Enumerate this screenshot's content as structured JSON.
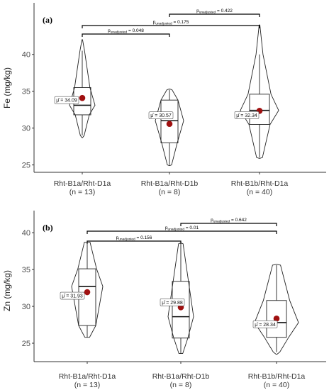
{
  "chart_data": [
    {
      "type": "violin",
      "panel_label": "(a)",
      "ylabel": "Fe (mg/kg)",
      "ylim": [
        24,
        47
      ],
      "yticks": [
        25,
        30,
        35,
        40
      ],
      "categories": [
        "Rht-B1a/Rht-D1a",
        "Rht-B1a/Rht-D1b",
        "Rht-B1b/Rht-D1a"
      ],
      "n_labels": [
        "(n = 13)",
        "(n = 8)",
        "(n = 40)"
      ],
      "groups": [
        {
          "name": "Rht-B1a/Rht-D1a",
          "n": 13,
          "mean": 34.09,
          "mean_label": "μ̂ = 34.09",
          "median": 33.1,
          "q1": 31.8,
          "q3": 35.5,
          "whisker_low": 29.0,
          "whisker_high": 40.5,
          "min": 28.7,
          "max": 42.0
        },
        {
          "name": "Rht-B1a/Rht-D1b",
          "n": 8,
          "mean": 30.57,
          "mean_label": "μ̂ = 30.57",
          "median": 31.0,
          "q1": 28.0,
          "q3": 33.8,
          "whisker_low": 25.0,
          "whisker_high": 35.2,
          "min": 24.9,
          "max": 35.3
        },
        {
          "name": "Rht-B1b/Rht-D1a",
          "n": 40,
          "mean": 32.34,
          "mean_label": "μ̂ = 32.34",
          "median": 32.4,
          "q1": 30.5,
          "q3": 34.6,
          "whisker_low": 26.0,
          "whisker_high": 40.0,
          "min": 25.9,
          "max": 44.0
        }
      ],
      "comparisons": [
        {
          "from": 0,
          "to": 1,
          "p": "0.048"
        },
        {
          "from": 0,
          "to": 2,
          "p": "0.175"
        },
        {
          "from": 1,
          "to": 2,
          "p": "0.422"
        }
      ]
    },
    {
      "type": "violin",
      "panel_label": "(b)",
      "ylabel": "Zn (mg/kg)",
      "ylim": [
        22.5,
        43
      ],
      "yticks": [
        25,
        30,
        35,
        40
      ],
      "categories": [
        "Rht-B1a/Rht-D1a",
        "Rht-B1a/Rht-D1b",
        "Rht-B1b/Rht-D1a"
      ],
      "n_labels": [
        "(n = 13)",
        "(n = 8)",
        "(n = 40)"
      ],
      "groups": [
        {
          "name": "Rht-B1a/Rht-D1a",
          "n": 13,
          "mean": 31.93,
          "mean_label": "μ̂ = 31.93",
          "median": 32.7,
          "q1": 27.4,
          "q3": 35.1,
          "whisker_low": 25.8,
          "whisker_high": 38.7,
          "min": 25.8,
          "max": 38.7
        },
        {
          "name": "Rht-B1a/Rht-D1b",
          "n": 8,
          "mean": 29.88,
          "mean_label": "μ̂ = 29.88",
          "median": 28.6,
          "q1": 25.7,
          "q3": 33.4,
          "whisker_low": 23.6,
          "whisker_high": 38.5,
          "min": 23.6,
          "max": 38.6
        },
        {
          "name": "Rht-B1b/Rht-D1a",
          "n": 40,
          "mean": 28.34,
          "mean_label": "μ̂ = 28.34",
          "median": 27.8,
          "q1": 25.8,
          "q3": 30.8,
          "whisker_low": 23.8,
          "whisker_high": 35.6,
          "min": 23.5,
          "max": 35.7
        }
      ],
      "comparisons": [
        {
          "from": 0,
          "to": 1,
          "p": "0.156"
        },
        {
          "from": 0,
          "to": 2,
          "p": "0.01"
        },
        {
          "from": 1,
          "to": 2,
          "p": "0.642"
        }
      ]
    }
  ]
}
